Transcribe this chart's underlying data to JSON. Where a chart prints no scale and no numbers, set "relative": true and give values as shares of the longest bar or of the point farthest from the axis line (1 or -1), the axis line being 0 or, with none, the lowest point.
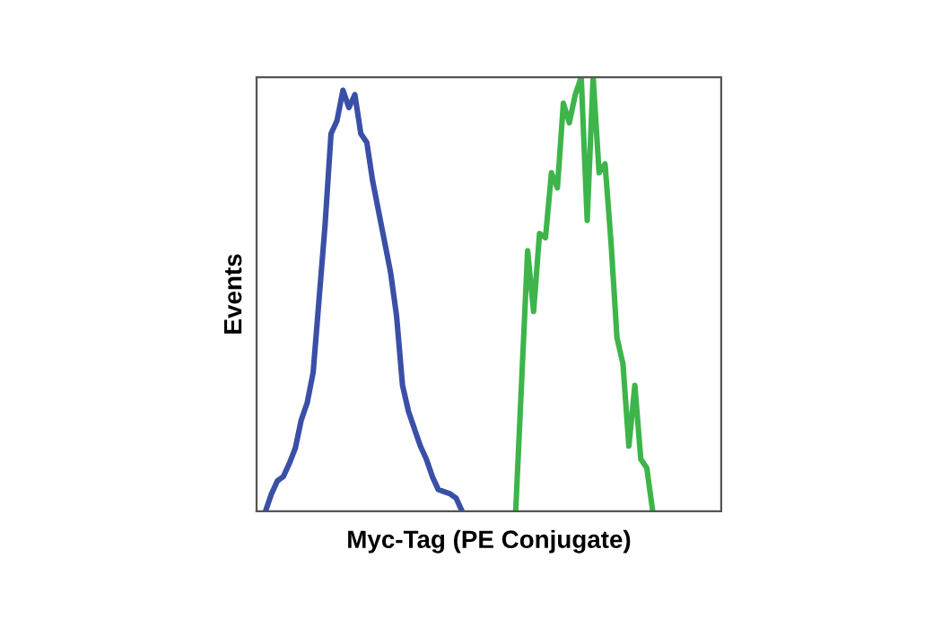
{
  "chart_data": {
    "type": "line",
    "relative": true,
    "xlabel": "Myc-Tag (PE Conjugate)",
    "ylabel": "Events",
    "grid": false,
    "legend": false,
    "marker": "none",
    "line_style": "solid",
    "categories": [
      null,
      null,
      null,
      null,
      null,
      null,
      null,
      null,
      null,
      null,
      null,
      null,
      null,
      null,
      null,
      null,
      null,
      null,
      null,
      null,
      null,
      null,
      null,
      null,
      null,
      null,
      null,
      null,
      null,
      null,
      null,
      null,
      null,
      null,
      null,
      null,
      null,
      null,
      null,
      null,
      null,
      null,
      null,
      null,
      null,
      null,
      null,
      null,
      null,
      null,
      null,
      null,
      null,
      null,
      null,
      null,
      null,
      null,
      null,
      null,
      null,
      null,
      null,
      null,
      null,
      null,
      null,
      null,
      null,
      null,
      null,
      null,
      null,
      null,
      null,
      null,
      null,
      null
    ],
    "series": [
      {
        "color": "#3a4fa6",
        "values": [
          null,
          0,
          0.04,
          0.07,
          0.08,
          0.11,
          0.145,
          0.21,
          0.25,
          0.32,
          0.49,
          0.66,
          0.87,
          0.9,
          0.97,
          0.93,
          0.96,
          0.87,
          0.85,
          0.76,
          0.69,
          0.62,
          0.55,
          0.45,
          0.29,
          0.23,
          0.19,
          0.15,
          0.12,
          0.08,
          0.05,
          0.045,
          0.04,
          0.03,
          0,
          null,
          null,
          null,
          null,
          null,
          null,
          null,
          null,
          null,
          null,
          null,
          null,
          null,
          null,
          null,
          null,
          null,
          null,
          null,
          null,
          null,
          null,
          null,
          null,
          null,
          null,
          null,
          null,
          null,
          null,
          null,
          null,
          null,
          null,
          null,
          null,
          null,
          null,
          null,
          null,
          null,
          null,
          null
        ]
      },
      {
        "color": "#3db54a",
        "values": [
          null,
          null,
          null,
          null,
          null,
          null,
          null,
          null,
          null,
          null,
          null,
          null,
          null,
          null,
          null,
          null,
          null,
          null,
          null,
          null,
          null,
          null,
          null,
          null,
          null,
          null,
          null,
          null,
          null,
          null,
          null,
          null,
          null,
          null,
          null,
          null,
          null,
          null,
          null,
          null,
          null,
          null,
          null,
          0,
          0.3,
          0.6,
          0.46,
          0.64,
          0.63,
          0.78,
          0.745,
          0.94,
          0.895,
          0.96,
          1.0,
          0.67,
          1.0,
          0.78,
          0.8,
          0.62,
          0.4,
          0.34,
          0.15,
          0.29,
          0.12,
          0.1,
          0,
          null,
          null,
          null,
          null,
          null,
          null,
          null,
          null,
          null,
          null,
          null
        ]
      }
    ]
  }
}
